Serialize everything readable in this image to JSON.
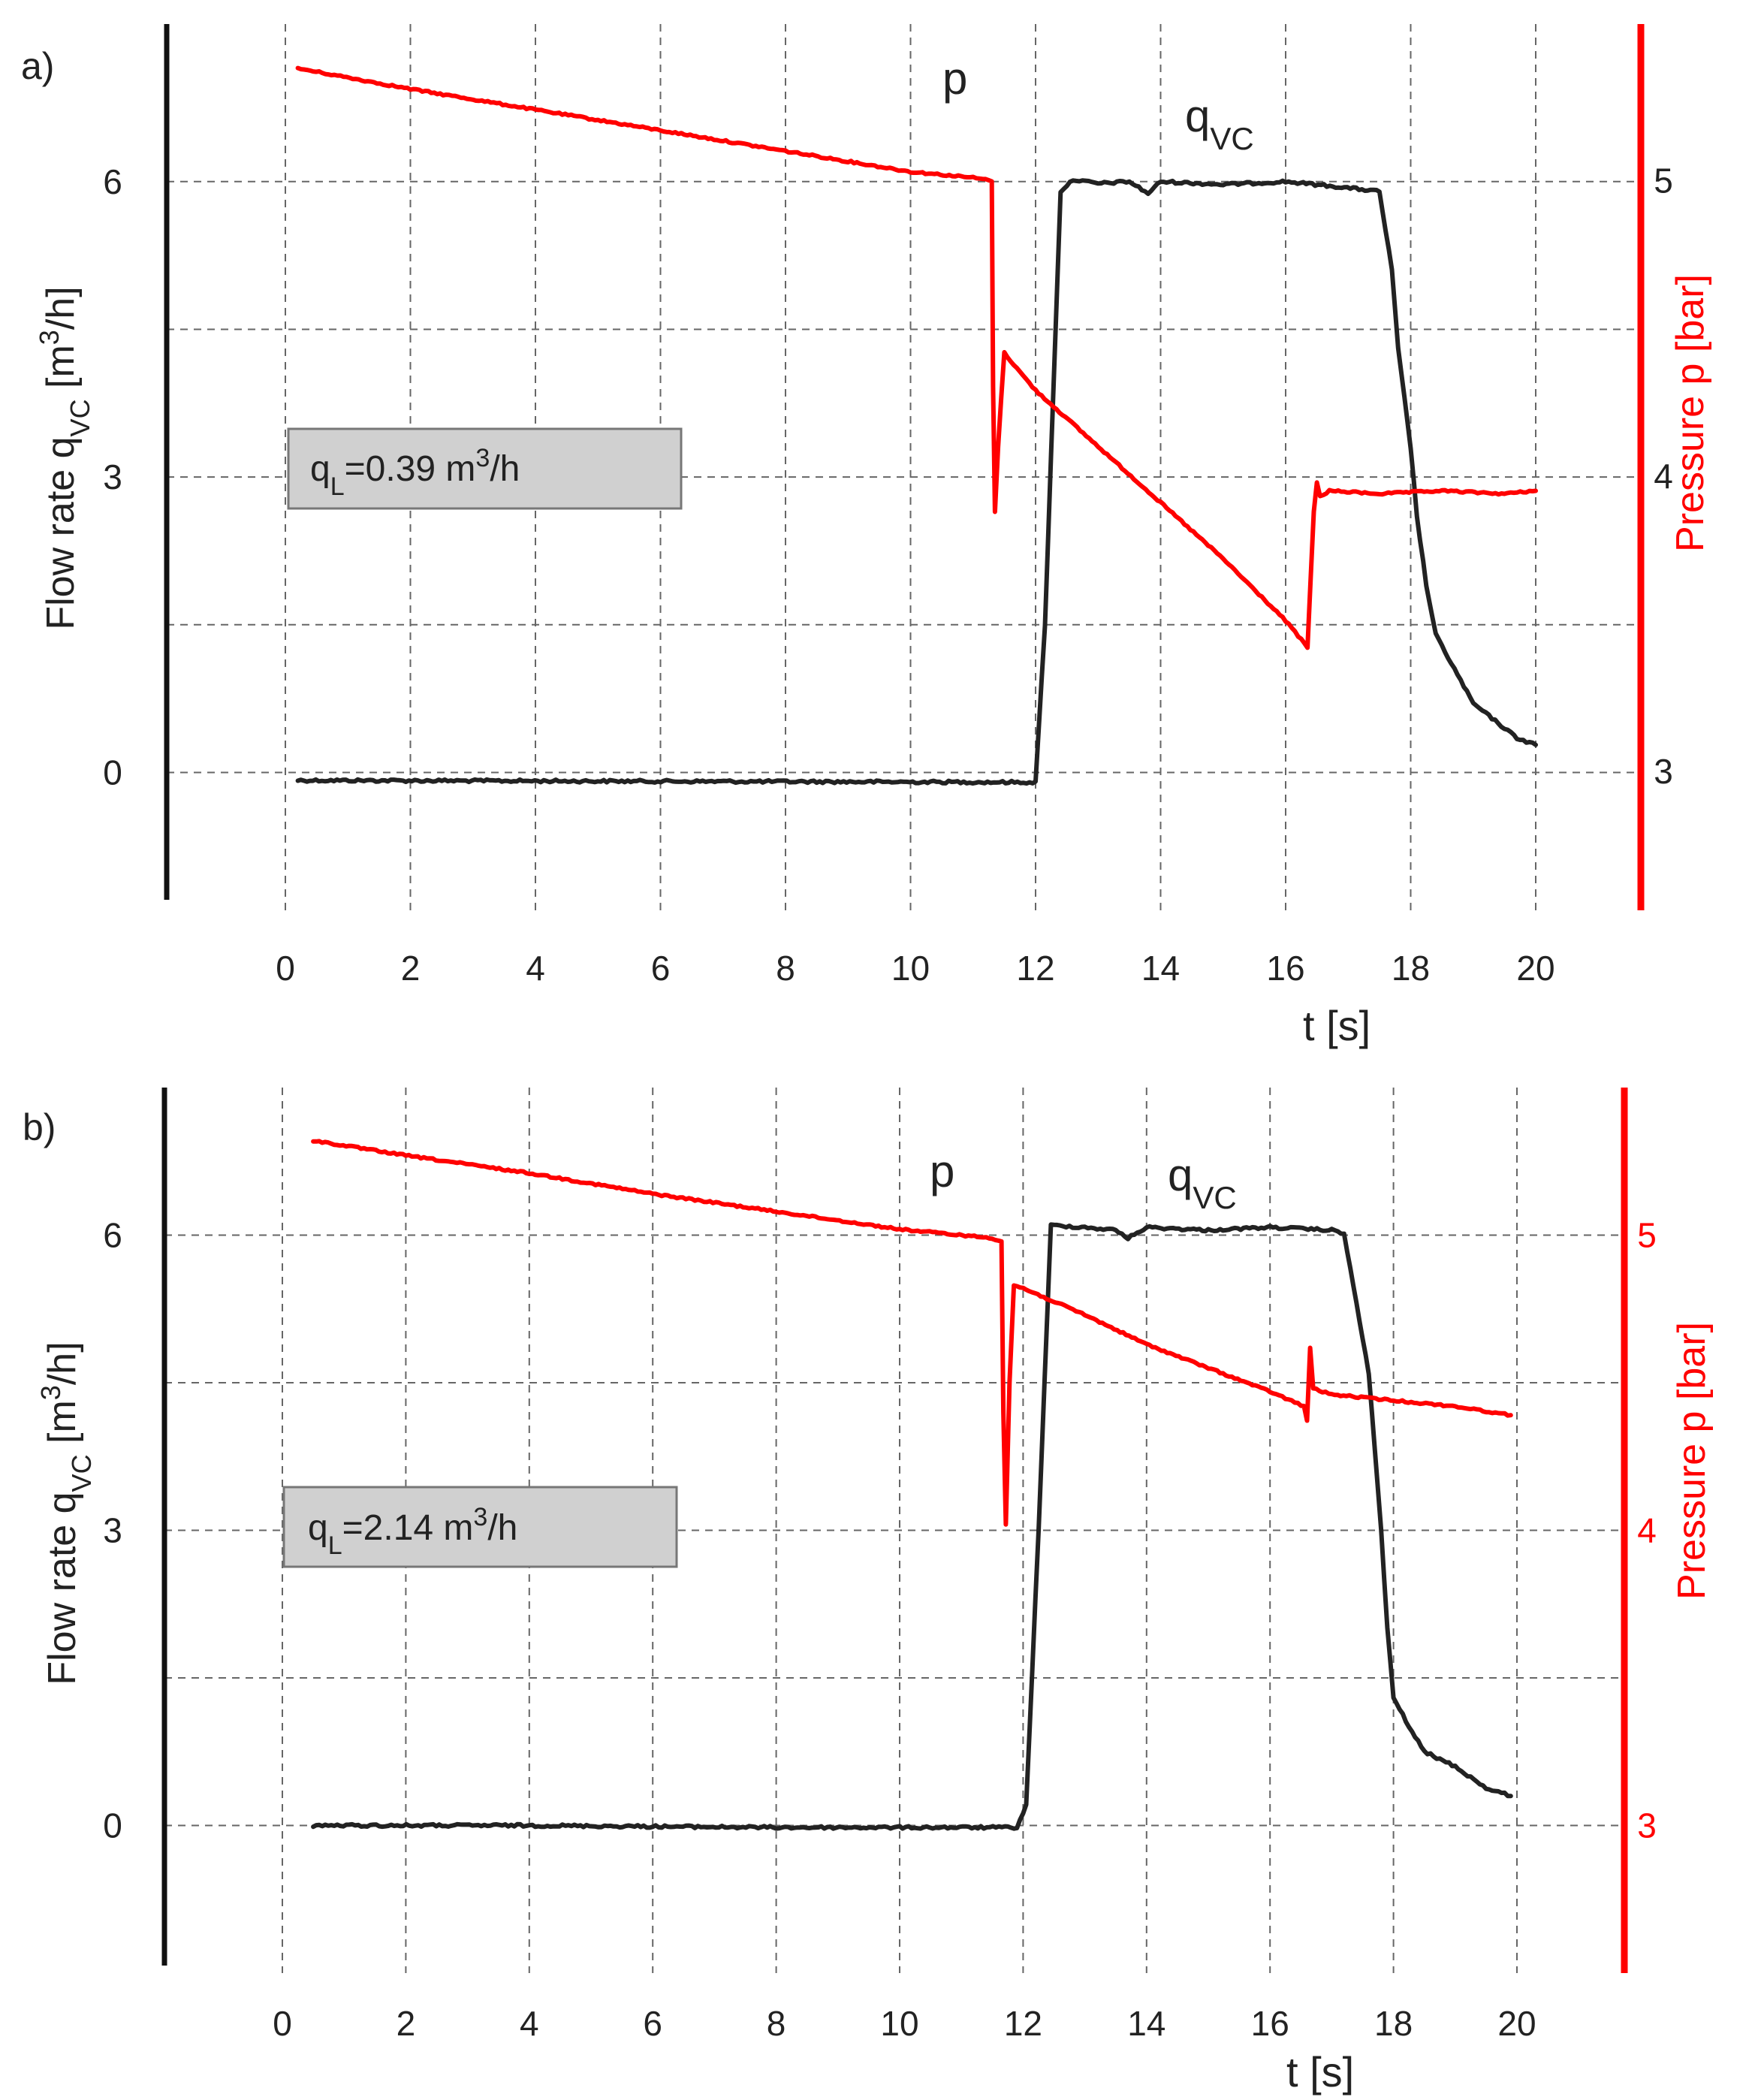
{
  "chart_data": [
    {
      "type": "line",
      "panel_label": "a)",
      "xlabel": "t [s]",
      "x_ticks": [
        "0",
        "2",
        "4",
        "6",
        "8",
        "10",
        "12",
        "14",
        "16",
        "18",
        "20"
      ],
      "xlim": [
        -2,
        21.5
      ],
      "y_left": {
        "label_main": "Flow rate q",
        "label_sub": "VC",
        "label_unit_pre": " [m",
        "label_sup": "3",
        "label_unit_post": "/h]",
        "ticks": [
          "0",
          "3",
          "6"
        ],
        "ylim": [
          -1.4,
          7.6
        ],
        "grid_minor": [
          1.5,
          4.5
        ]
      },
      "y_right": {
        "label": "Pressure p [bar]",
        "ticks": [
          "3",
          "4",
          "5"
        ],
        "ylim": [
          2.53,
          5.53
        ],
        "tick_color": "#222222"
      },
      "annotation_box": {
        "main": "q",
        "sub": "L",
        "rest": "=0.39 m",
        "sup": "3",
        "tail": "/h"
      },
      "curve_labels": {
        "p": "p",
        "qvc_main": "q",
        "qvc_sub": "VC"
      },
      "series": [
        {
          "name": "q_vc",
          "axis": "left",
          "color": "#222222",
          "points": [
            [
              0.2,
              -0.08
            ],
            [
              12.0,
              -0.1
            ],
            [
              12.15,
              1.5
            ],
            [
              12.4,
              5.9
            ],
            [
              12.6,
              6.02
            ],
            [
              13.0,
              5.98
            ],
            [
              13.5,
              6.0
            ],
            [
              13.8,
              5.88
            ],
            [
              14.0,
              6.0
            ],
            [
              15.0,
              5.97
            ],
            [
              16.0,
              6.0
            ],
            [
              16.8,
              5.95
            ],
            [
              17.5,
              5.9
            ],
            [
              17.7,
              5.1
            ],
            [
              17.8,
              4.3
            ],
            [
              17.9,
              3.8
            ],
            [
              18.0,
              3.3
            ],
            [
              18.1,
              2.6
            ],
            [
              18.25,
              1.9
            ],
            [
              18.4,
              1.4
            ],
            [
              18.7,
              1.05
            ],
            [
              19.0,
              0.7
            ],
            [
              19.4,
              0.5
            ],
            [
              19.7,
              0.35
            ],
            [
              20.0,
              0.28
            ]
          ]
        },
        {
          "name": "p",
          "axis": "right",
          "color": "#ff0000",
          "points": [
            [
              0.2,
              5.38
            ],
            [
              2,
              5.31
            ],
            [
              4,
              5.24
            ],
            [
              6,
              5.17
            ],
            [
              8,
              5.1
            ],
            [
              10,
              5.03
            ],
            [
              11.0,
              5.01
            ],
            [
              11.3,
              5.0
            ],
            [
              11.32,
              4.3
            ],
            [
              11.35,
              3.88
            ],
            [
              11.4,
              4.1
            ],
            [
              11.5,
              4.42
            ],
            [
              11.6,
              4.39
            ],
            [
              12.0,
              4.29
            ],
            [
              13.0,
              4.1
            ],
            [
              14.0,
              3.91
            ],
            [
              15.0,
              3.72
            ],
            [
              16.0,
              3.51
            ],
            [
              16.35,
              3.42
            ],
            [
              16.4,
              3.65
            ],
            [
              16.45,
              3.88
            ],
            [
              16.5,
              3.98
            ],
            [
              16.55,
              3.93
            ],
            [
              16.7,
              3.95
            ],
            [
              17.5,
              3.94
            ],
            [
              18.5,
              3.95
            ],
            [
              19.5,
              3.94
            ],
            [
              20.0,
              3.95
            ]
          ]
        }
      ]
    },
    {
      "type": "line",
      "panel_label": "b)",
      "xlabel": "t [s]",
      "x_ticks": [
        "0",
        "2",
        "4",
        "6",
        "8",
        "10",
        "12",
        "14",
        "16",
        "18",
        "20"
      ],
      "xlim": [
        -2,
        21.5
      ],
      "y_left": {
        "label_main": "Flow rate q",
        "label_sub": "VC",
        "label_unit_pre": " [m",
        "label_sup": "3",
        "label_unit_post": "/h]",
        "ticks": [
          "0",
          "3",
          "6"
        ],
        "ylim": [
          -1.5,
          7.5
        ],
        "grid_minor": [
          1.5,
          4.5
        ]
      },
      "y_right": {
        "label": "Pressure p [bar]",
        "ticks": [
          "3",
          "4",
          "5"
        ],
        "ylim": [
          2.5,
          5.5
        ],
        "tick_color": "#ff0000"
      },
      "annotation_box": {
        "main": "q",
        "sub": "L",
        "rest": "=2.14 m",
        "sup": "3",
        "tail": "/h"
      },
      "curve_labels": {
        "p": "p",
        "qvc_main": "q",
        "qvc_sub": "VC"
      },
      "series": [
        {
          "name": "q_vc",
          "axis": "left",
          "color": "#222222",
          "points": [
            [
              0.5,
              0.0
            ],
            [
              4,
              0.0
            ],
            [
              8,
              -0.02
            ],
            [
              11.9,
              -0.02
            ],
            [
              12.05,
              0.2
            ],
            [
              12.25,
              3.0
            ],
            [
              12.45,
              6.1
            ],
            [
              13.0,
              6.08
            ],
            [
              13.5,
              6.05
            ],
            [
              13.7,
              5.97
            ],
            [
              14.0,
              6.08
            ],
            [
              15.0,
              6.05
            ],
            [
              16.0,
              6.08
            ],
            [
              17.0,
              6.05
            ],
            [
              17.2,
              6.02
            ],
            [
              17.4,
              5.3
            ],
            [
              17.6,
              4.6
            ],
            [
              17.8,
              3.0
            ],
            [
              17.9,
              2.0
            ],
            [
              18.0,
              1.3
            ],
            [
              18.3,
              0.95
            ],
            [
              18.5,
              0.75
            ],
            [
              19.0,
              0.6
            ],
            [
              19.5,
              0.38
            ],
            [
              19.9,
              0.3
            ]
          ]
        },
        {
          "name": "p",
          "axis": "right",
          "color": "#ff0000",
          "points": [
            [
              0.5,
              5.32
            ],
            [
              2,
              5.27
            ],
            [
              4,
              5.21
            ],
            [
              6,
              5.14
            ],
            [
              8,
              5.08
            ],
            [
              10,
              5.02
            ],
            [
              11.5,
              4.99
            ],
            [
              11.65,
              4.98
            ],
            [
              11.68,
              4.4
            ],
            [
              11.72,
              4.02
            ],
            [
              11.78,
              4.5
            ],
            [
              11.85,
              4.83
            ],
            [
              12.0,
              4.82
            ],
            [
              13.0,
              4.73
            ],
            [
              14.0,
              4.63
            ],
            [
              15.0,
              4.55
            ],
            [
              16.0,
              4.47
            ],
            [
              16.55,
              4.42
            ],
            [
              16.6,
              4.37
            ],
            [
              16.65,
              4.62
            ],
            [
              16.7,
              4.48
            ],
            [
              17.0,
              4.46
            ],
            [
              18.0,
              4.44
            ],
            [
              19.0,
              4.42
            ],
            [
              19.9,
              4.39
            ]
          ]
        }
      ]
    }
  ]
}
